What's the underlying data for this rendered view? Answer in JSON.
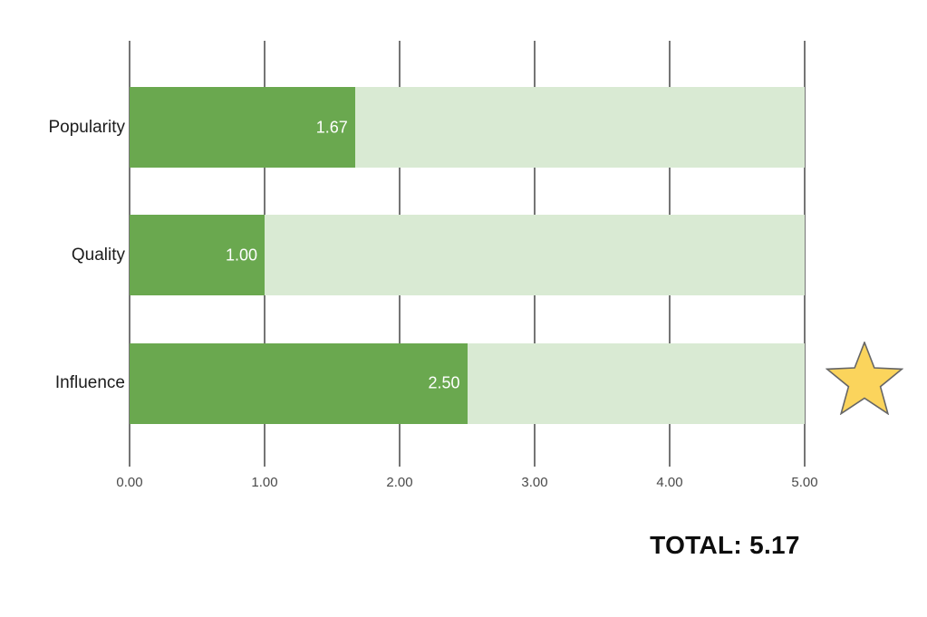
{
  "chart_data": {
    "type": "bar",
    "orientation": "horizontal",
    "categories": [
      "Popularity",
      "Quality",
      "Influence"
    ],
    "values": [
      1.67,
      1.0,
      2.5
    ],
    "value_labels": [
      "1.67",
      "1.00",
      "2.50"
    ],
    "xlim": [
      0,
      5
    ],
    "xticks": [
      "0.00",
      "1.00",
      "2.00",
      "3.00",
      "4.00",
      "5.00"
    ],
    "bar_color": "#6aa84f",
    "track_color": "#d9ead3",
    "grid": true,
    "legend": false,
    "title": ""
  },
  "total_label": "TOTAL: 5.17",
  "star_icon": {
    "fill": "#fbd45c",
    "stroke": "#666666"
  }
}
